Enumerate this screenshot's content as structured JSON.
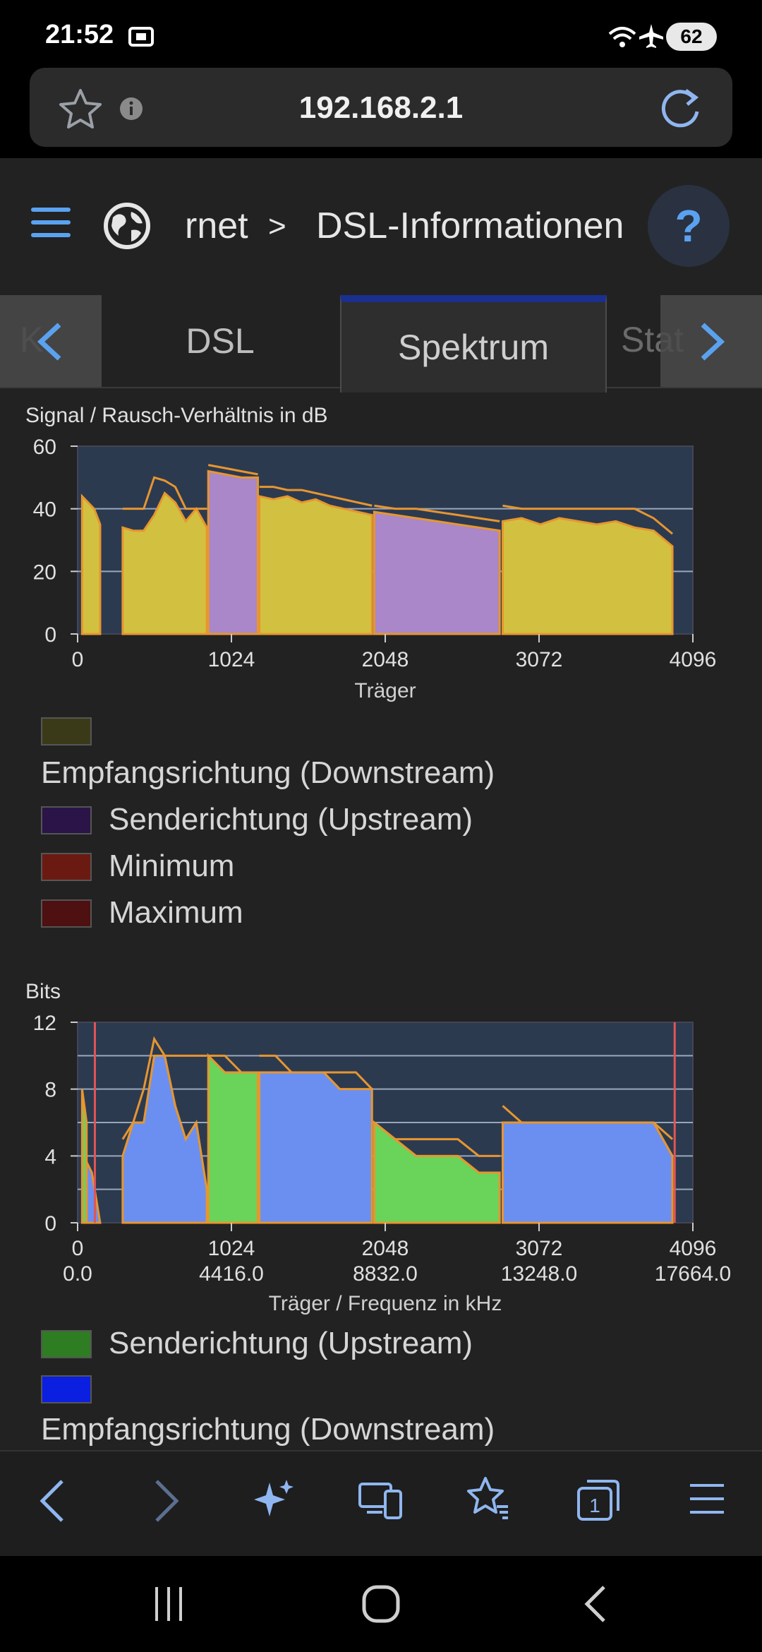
{
  "status_bar": {
    "time": "21:52",
    "battery": "62"
  },
  "url_bar": {
    "url": "192.168.2.1"
  },
  "header": {
    "breadcrumb_partial": "rnet",
    "breadcrumb_separator": ">",
    "breadcrumb_current": "DSL-Informationen",
    "help_label": "?"
  },
  "tabs": [
    {
      "label": "DSL"
    },
    {
      "label": "Spektrum",
      "active": true
    },
    {
      "label": "Stat"
    }
  ],
  "colors": {
    "downstream_fill": "#d2c140",
    "upstream_fill": "#a987c8",
    "bits_downstream": "#6b8ff0",
    "bits_upstream": "#6ad35a",
    "edge": "#e7962f",
    "plot_bg": "#2c3a50",
    "grid": "#9aa7bb",
    "marker": "#e05555"
  },
  "snr_chart": {
    "title": "Signal / Rausch-Verhältnis in dB",
    "xlabel": "Träger",
    "ylim": [
      0,
      60
    ],
    "yticks": [
      "0",
      "20",
      "40",
      "60"
    ],
    "xticks": [
      "0",
      "1024",
      "2048",
      "3072",
      "4096"
    ],
    "legend": [
      {
        "label": "Empfangsrichtung (Downstream)",
        "color": "#3b3a18"
      },
      {
        "label": "Senderichtung (Upstream)",
        "color": "#2a1448"
      },
      {
        "label": "Minimum",
        "color": "#6b1a12"
      },
      {
        "label": "Maximum",
        "color": "#4e1010"
      }
    ]
  },
  "bits_chart": {
    "title": "Bits",
    "xlabel": "Träger / Frequenz in kHz",
    "ylim": [
      0,
      12
    ],
    "yticks": [
      "0",
      "4",
      "8",
      "12"
    ],
    "xticks": [
      "0",
      "1024",
      "2048",
      "3072",
      "4096"
    ],
    "xticks_freq": [
      "0.0",
      "4416.0",
      "8832.0",
      "13248.0",
      "17664.0"
    ],
    "legend": [
      {
        "label": "Senderichtung (Upstream)",
        "color": "#2e7d22"
      },
      {
        "label": "Empfangsrichtung (Downstream)",
        "color": "#0a1fe0"
      }
    ]
  },
  "chart_data": [
    {
      "type": "area",
      "title": "Signal / Rausch-Verhältnis in dB",
      "xlabel": "Träger",
      "ylabel": "dB",
      "xlim": [
        0,
        4096
      ],
      "ylim": [
        0,
        60
      ],
      "series": [
        {
          "name": "Empfangsrichtung (Downstream)",
          "bands": [
            {
              "x0": 30,
              "x1": 150,
              "values": [
                44,
                42,
                40,
                35
              ]
            },
            {
              "x0": 300,
              "x1": 860,
              "values": [
                34,
                33,
                33,
                38,
                45,
                42,
                36,
                40,
                34
              ]
            },
            {
              "x0": 1210,
              "x1": 1960,
              "values": [
                44,
                43,
                44,
                42,
                43,
                41,
                40,
                39,
                38
              ]
            },
            {
              "x0": 2830,
              "x1": 3960,
              "values": [
                36,
                37,
                35,
                37,
                36,
                35,
                36,
                34,
                33,
                28
              ]
            }
          ]
        },
        {
          "name": "Senderichtung (Upstream)",
          "bands": [
            {
              "x0": 870,
              "x1": 1200,
              "values": [
                52,
                51,
                50,
                50
              ]
            },
            {
              "x0": 1975,
              "x1": 2810,
              "values": [
                39,
                38,
                37,
                36,
                35,
                34,
                33
              ]
            }
          ]
        }
      ],
      "maximum": [
        {
          "x0": 300,
          "x1": 860,
          "values": [
            40,
            40,
            40,
            50,
            49,
            47,
            40,
            40,
            40
          ]
        },
        {
          "x0": 870,
          "x1": 1200,
          "values": [
            54,
            53,
            52,
            51
          ]
        },
        {
          "x0": 1210,
          "x1": 1960,
          "values": [
            47,
            47,
            46,
            46,
            45,
            44,
            43,
            42,
            41
          ]
        },
        {
          "x0": 1975,
          "x1": 2810,
          "values": [
            41,
            40,
            40,
            39,
            38,
            37,
            36
          ]
        },
        {
          "x0": 2830,
          "x1": 3960,
          "values": [
            41,
            40,
            40,
            40,
            40,
            40,
            40,
            40,
            37,
            32
          ]
        }
      ]
    },
    {
      "type": "area",
      "title": "Bits",
      "xlabel": "Träger / Frequenz in kHz",
      "ylabel": "Bits",
      "xlim": [
        0,
        4096
      ],
      "ylim": [
        0,
        12
      ],
      "series": [
        {
          "name": "Empfangsrichtung (Downstream)",
          "bands": [
            {
              "x0": 40,
              "x1": 150,
              "values": [
                4,
                3,
                0
              ]
            },
            {
              "x0": 300,
              "x1": 860,
              "values": [
                4,
                6,
                6,
                10,
                10,
                7,
                5,
                6,
                2
              ]
            },
            {
              "x0": 1210,
              "x1": 1960,
              "values": [
                9,
                9,
                9,
                9,
                9,
                8,
                8,
                8
              ]
            },
            {
              "x0": 2830,
              "x1": 3960,
              "values": [
                6,
                6,
                6,
                6,
                6,
                6,
                6,
                6,
                6,
                4
              ]
            }
          ]
        },
        {
          "name": "Senderichtung (Upstream)",
          "bands": [
            {
              "x0": 30,
              "x1": 60,
              "values": [
                8,
                6
              ]
            },
            {
              "x0": 870,
              "x1": 1200,
              "values": [
                10,
                9,
                9,
                9
              ]
            },
            {
              "x0": 1975,
              "x1": 2810,
              "values": [
                6,
                5,
                4,
                4,
                4,
                3,
                3
              ]
            }
          ]
        }
      ],
      "maximum": [
        {
          "x0": 300,
          "x1": 860,
          "values": [
            5,
            6,
            8,
            11,
            10,
            10,
            10,
            10,
            10
          ]
        },
        {
          "x0": 870,
          "x1": 1200,
          "values": [
            10,
            10,
            9,
            9
          ]
        },
        {
          "x0": 1210,
          "x1": 1960,
          "values": [
            10,
            10,
            9,
            9,
            9,
            9,
            9,
            8
          ]
        },
        {
          "x0": 1975,
          "x1": 2810,
          "values": [
            6,
            5,
            5,
            5,
            5,
            4,
            4
          ]
        },
        {
          "x0": 2830,
          "x1": 3960,
          "values": [
            7,
            6,
            6,
            6,
            6,
            6,
            6,
            6,
            6,
            5
          ]
        }
      ],
      "marker_lines_x": [
        115,
        3975
      ]
    }
  ],
  "browser_nav": [
    "back-icon",
    "forward-icon",
    "ai-sparkle-icon",
    "devices-icon",
    "bookmarks-icon",
    "tabs-icon",
    "menu-icon"
  ],
  "browser_nav_tabs_count": "1"
}
